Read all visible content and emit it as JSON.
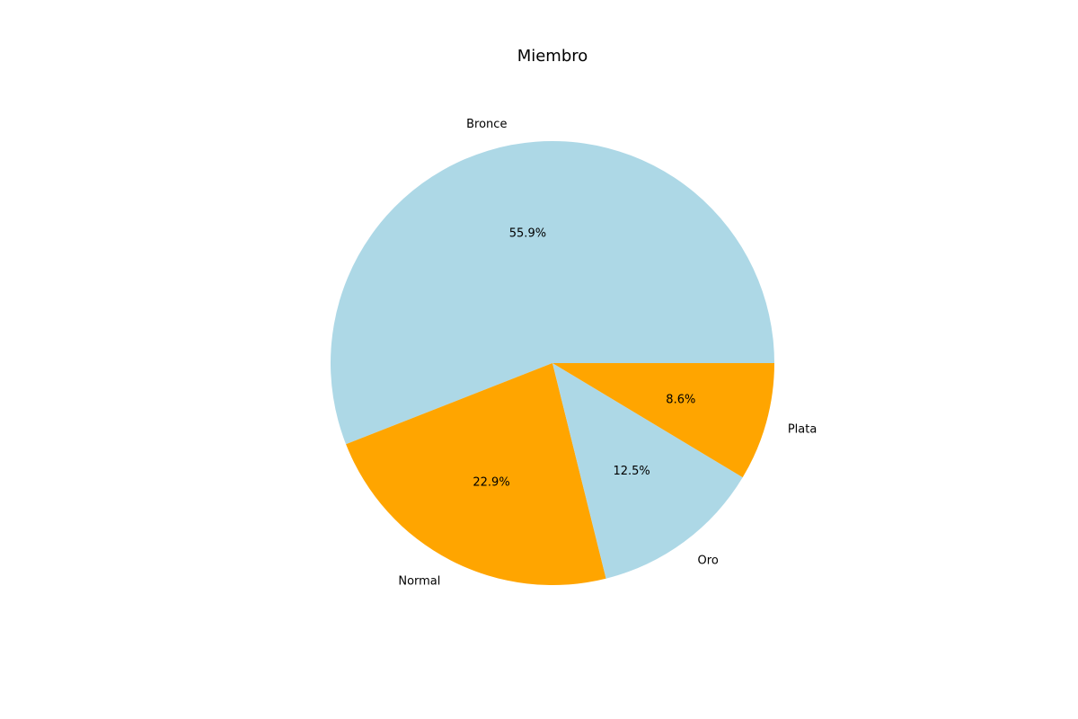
{
  "chart_data": {
    "type": "pie",
    "title": "Miembro",
    "categories": [
      "Bronce",
      "Normal",
      "Oro",
      "Plata"
    ],
    "values": [
      55.9,
      22.9,
      12.5,
      8.6
    ],
    "percent_labels": [
      "55.9%",
      "22.9%",
      "12.5%",
      "8.6%"
    ],
    "colors": [
      "#add8e6",
      "#ffa500",
      "#add8e6",
      "#ffa500"
    ],
    "legend": "none"
  }
}
